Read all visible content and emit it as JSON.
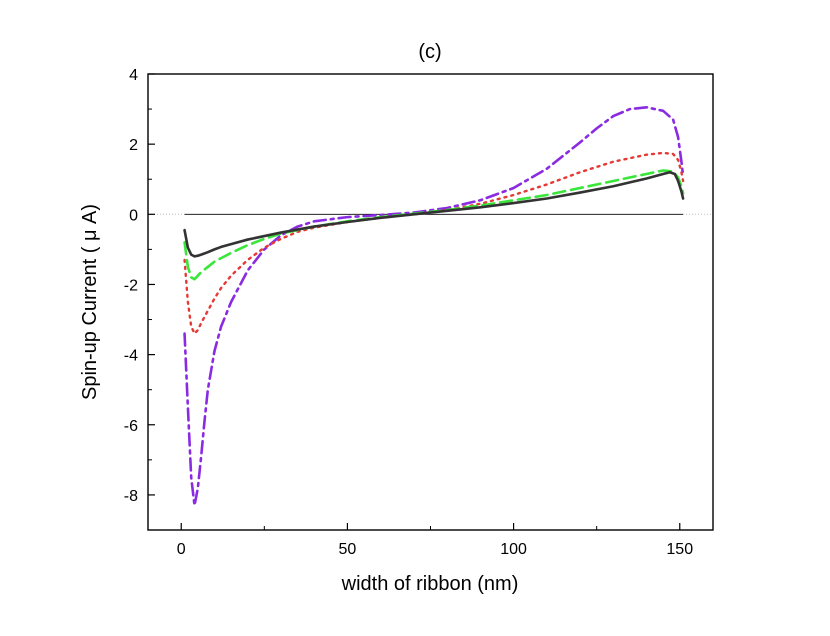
{
  "chart_data": {
    "type": "line",
    "title": "(c)",
    "xlabel": "width of ribbon (nm)",
    "ylabel": "Spin-up Current (   μ A)",
    "xlim": [
      -10,
      160
    ],
    "ylim": [
      -9,
      4
    ],
    "xticks": [
      0,
      50,
      100,
      150
    ],
    "yticks": [
      -8,
      -6,
      -4,
      -2,
      0,
      2,
      4
    ],
    "grid": false,
    "legend": "none",
    "zero_line": true,
    "series": [
      {
        "color": "#8a2be2",
        "dash": "dash-dot",
        "x": [
          1,
          2,
          3,
          4,
          5,
          6,
          7,
          8,
          10,
          12,
          15,
          20,
          25,
          30,
          35,
          40,
          50,
          60,
          70,
          80,
          90,
          100,
          110,
          120,
          125,
          130,
          135,
          140,
          145,
          148,
          149.5,
          150.5,
          151
        ],
        "y": [
          -3.4,
          -5.5,
          -7.5,
          -8.3,
          -7.8,
          -6.9,
          -5.9,
          -5.0,
          -3.9,
          -3.2,
          -2.5,
          -1.6,
          -1.0,
          -0.6,
          -0.35,
          -0.2,
          -0.08,
          -0.02,
          0.05,
          0.18,
          0.4,
          0.75,
          1.3,
          2.05,
          2.45,
          2.8,
          3.0,
          3.05,
          2.95,
          2.7,
          2.2,
          1.5,
          1.1
        ]
      },
      {
        "color": "#e53935",
        "dash": "dot",
        "x": [
          1,
          2,
          3,
          4,
          5,
          6,
          8,
          10,
          12,
          15,
          20,
          25,
          30,
          35,
          40,
          50,
          60,
          70,
          80,
          90,
          100,
          110,
          120,
          130,
          140,
          145,
          148,
          149.5,
          150.5,
          151
        ],
        "y": [
          -1.3,
          -2.5,
          -3.2,
          -3.4,
          -3.3,
          -3.1,
          -2.75,
          -2.4,
          -2.1,
          -1.75,
          -1.3,
          -0.95,
          -0.7,
          -0.5,
          -0.38,
          -0.22,
          -0.1,
          0.0,
          0.12,
          0.3,
          0.55,
          0.85,
          1.2,
          1.5,
          1.7,
          1.75,
          1.72,
          1.55,
          1.2,
          0.95
        ]
      },
      {
        "color": "#39e639",
        "dash": "dash",
        "x": [
          1,
          2,
          3,
          4,
          5,
          6,
          8,
          10,
          12,
          15,
          20,
          25,
          30,
          40,
          50,
          60,
          70,
          80,
          90,
          100,
          110,
          120,
          130,
          140,
          145,
          148,
          149.5,
          150.5,
          151
        ],
        "y": [
          -0.8,
          -1.5,
          -1.8,
          -1.85,
          -1.75,
          -1.65,
          -1.5,
          -1.35,
          -1.25,
          -1.1,
          -0.88,
          -0.7,
          -0.55,
          -0.35,
          -0.2,
          -0.08,
          0.02,
          0.12,
          0.25,
          0.4,
          0.55,
          0.75,
          0.95,
          1.15,
          1.25,
          1.22,
          1.05,
          0.8,
          0.6
        ]
      },
      {
        "color": "#333333",
        "dash": "solid",
        "x": [
          1,
          2,
          3,
          4,
          5,
          6,
          8,
          10,
          12,
          15,
          20,
          25,
          30,
          40,
          50,
          60,
          70,
          80,
          90,
          100,
          110,
          120,
          130,
          140,
          145,
          147,
          148.5,
          149.5,
          150.5,
          151
        ],
        "y": [
          -0.45,
          -0.95,
          -1.15,
          -1.2,
          -1.18,
          -1.15,
          -1.08,
          -1.0,
          -0.93,
          -0.85,
          -0.72,
          -0.62,
          -0.52,
          -0.35,
          -0.22,
          -0.1,
          0.0,
          0.1,
          0.2,
          0.32,
          0.45,
          0.62,
          0.8,
          1.02,
          1.15,
          1.2,
          1.15,
          0.95,
          0.65,
          0.45
        ]
      }
    ]
  }
}
